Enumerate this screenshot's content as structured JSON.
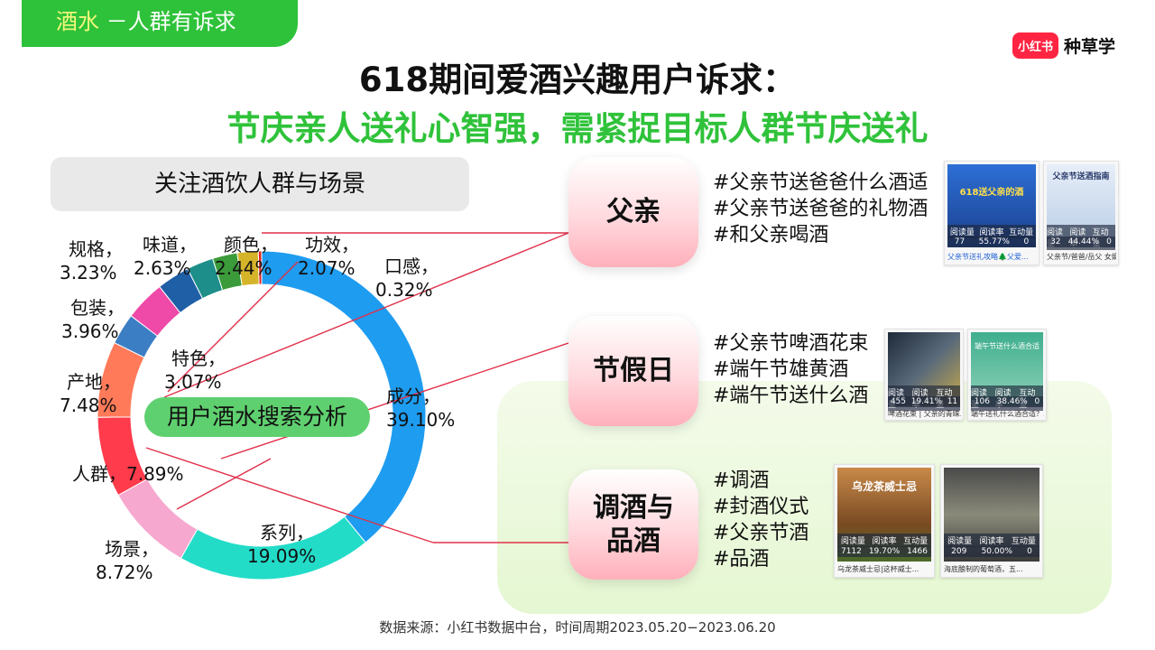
{
  "header": {
    "tag_highlight": "酒水",
    "tag_rest": "－人群有诉求",
    "brand_logo": "小红书",
    "brand_text": "种草学"
  },
  "title_line1": "618期间爱酒兴趣用户诉求：",
  "title_line2": "节庆亲人送礼心智强，需紧捉目标人群节庆送礼",
  "subhead": "关注酒饮人群与场景",
  "center_label": "用户酒水搜索分析",
  "chart_data": {
    "type": "pie",
    "categories": [
      "成分",
      "系列",
      "场景",
      "人群",
      "产地",
      "特色",
      "包装",
      "规格",
      "味道",
      "颜色",
      "功效",
      "口感"
    ],
    "values": [
      39.1,
      19.09,
      8.72,
      7.89,
      7.48,
      3.07,
      3.96,
      3.23,
      2.63,
      2.44,
      2.07,
      0.32
    ],
    "colors": [
      "#1e9cf0",
      "#22dcc8",
      "#f7a8cf",
      "#ff3b4c",
      "#ff7a59",
      "#3c7ec4",
      "#ef4aa8",
      "#1f5fa6",
      "#1e8e8a",
      "#3b9b3a",
      "#d6b42a",
      "#e02020"
    ],
    "labels": [
      "成分，",
      "系列，",
      "场景，",
      "人群，",
      "产地，",
      "特色，",
      "包装，",
      "规格，",
      "味道，",
      "颜色，",
      "功效，",
      "口感，"
    ],
    "value_labels": [
      "39.10%",
      "19.09%",
      "8.72%",
      "7.89%",
      "7.48%",
      "3.07%",
      "3.96%",
      "3.23%",
      "2.63%",
      "2.44%",
      "2.07%",
      "0.32%"
    ]
  },
  "groups": [
    {
      "pill": "父亲",
      "tags": [
        "#父亲节送爸爸什么酒适",
        "#父亲节送爸爸的礼物酒",
        "#和父亲喝酒"
      ],
      "cards": [
        {
          "img_text": "618送父亲的酒",
          "stat_labels": [
            "阅读量",
            "阅读率",
            "互动量"
          ],
          "stat_values": [
            "77",
            "55.77%",
            "0"
          ],
          "caption": "父亲节送礼攻略🌲父爱..."
        },
        {
          "img_text": "父亲节送酒指南",
          "stat_labels": [
            "阅读量",
            "阅读率",
            "互动量"
          ],
          "stat_values": [
            "32",
            "44.44%",
            "0"
          ],
          "caption": "父亲节/爸爸/岳父 女婿..."
        }
      ]
    },
    {
      "pill": "节假日",
      "tags": [
        "#父亲节啤酒花束",
        "#端午节雄黄酒",
        "#端午节送什么酒"
      ],
      "cards": [
        {
          "img_text": "",
          "stat_labels": [
            "阅读量",
            "阅读率",
            "互动量"
          ],
          "stat_values": [
            "455",
            "19.41%",
            "11"
          ],
          "caption": "啤酒花束 | 父亲的青睐..."
        },
        {
          "img_text": "端午节送什么酒合适",
          "stat_labels": [
            "阅读量",
            "阅读率",
            "互动量"
          ],
          "stat_values": [
            "106",
            "38.46%",
            "0"
          ],
          "caption": "端午送礼什么酒合适？..."
        }
      ]
    },
    {
      "pill": "调酒与品酒",
      "pill_line1": "调酒与",
      "pill_line2": "品酒",
      "tags": [
        "#调酒",
        "#封酒仪式",
        "#父亲节酒",
        "#品酒"
      ],
      "cards": [
        {
          "img_text": "乌龙茶威士忌",
          "stat_labels": [
            "阅读量",
            "阅读率",
            "互动量"
          ],
          "stat_values": [
            "7112",
            "19.70%",
            "1466"
          ],
          "caption": "乌龙茶威士忌|这杯威士..."
        },
        {
          "img_text": "",
          "stat_labels": [
            "阅读量",
            "阅读率",
            "互动量"
          ],
          "stat_values": [
            "209",
            "50.00%",
            "0"
          ],
          "caption": "海底酿制的葡萄酒，五..."
        }
      ]
    }
  ],
  "source": "数据来源：小红书数据中台，时间周期2023.05.20−2023.06.20"
}
